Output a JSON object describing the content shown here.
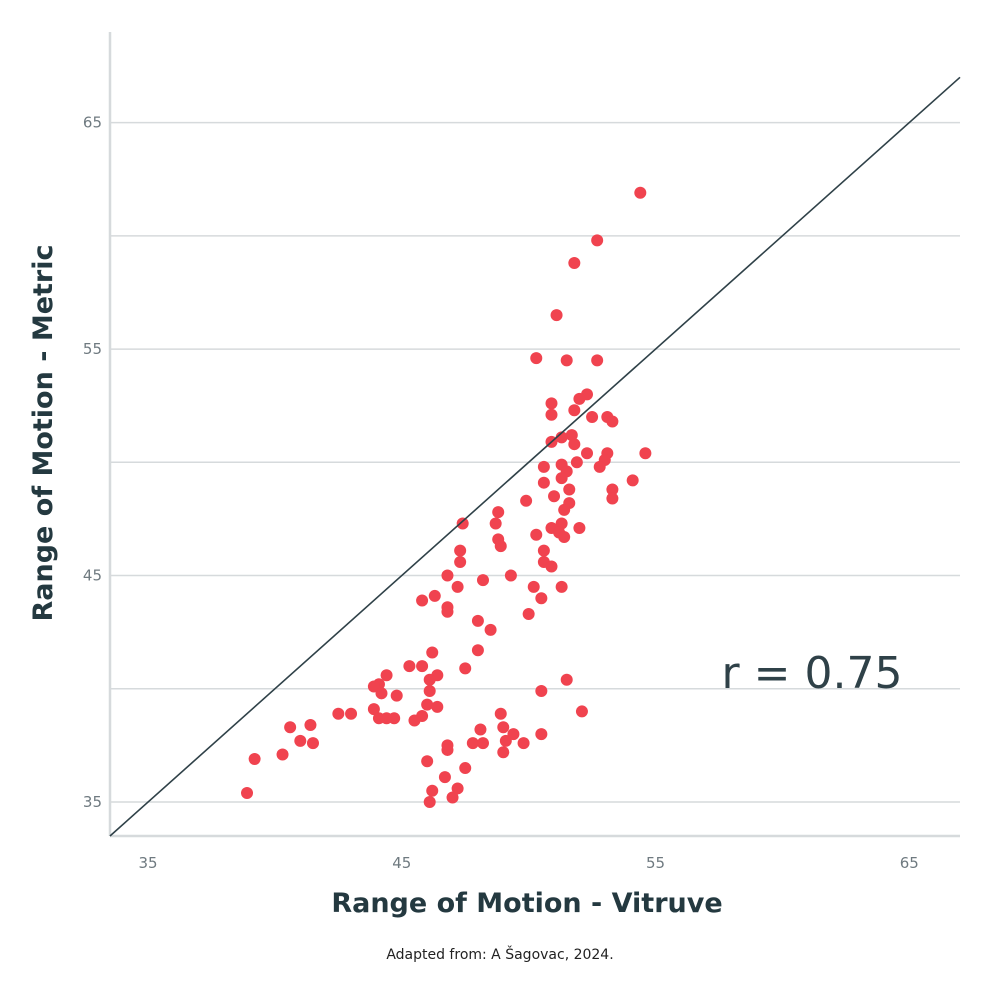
{
  "chart_data": {
    "type": "scatter",
    "title": "",
    "xlabel": "Range of Motion - Vitruve",
    "ylabel": "Range of Motion - Metric",
    "xlim": [
      33.5,
      67
    ],
    "ylim": [
      33.5,
      69
    ],
    "xticks": [
      35,
      45,
      55,
      65
    ],
    "yticks": [
      35,
      45,
      55,
      65
    ],
    "grid": true,
    "point_color": "#f0434f",
    "line_color": "#2f4148",
    "reference_line": {
      "type": "identity",
      "label": ""
    },
    "annotation": "r = 0.75",
    "points": [
      [
        54.4,
        61.9
      ],
      [
        52.7,
        59.8
      ],
      [
        51.8,
        58.8
      ],
      [
        51.1,
        56.5
      ],
      [
        50.3,
        54.6
      ],
      [
        51.5,
        54.5
      ],
      [
        52.7,
        54.5
      ],
      [
        52.3,
        53.0
      ],
      [
        52.0,
        52.8
      ],
      [
        50.9,
        52.6
      ],
      [
        51.8,
        52.3
      ],
      [
        50.9,
        52.1
      ],
      [
        52.5,
        52.0
      ],
      [
        53.1,
        52.0
      ],
      [
        53.3,
        51.8
      ],
      [
        51.7,
        51.2
      ],
      [
        51.3,
        51.1
      ],
      [
        50.9,
        50.9
      ],
      [
        51.8,
        50.8
      ],
      [
        52.3,
        50.4
      ],
      [
        53.1,
        50.4
      ],
      [
        54.6,
        50.4
      ],
      [
        53.0,
        50.1
      ],
      [
        51.9,
        50.0
      ],
      [
        51.3,
        49.9
      ],
      [
        50.6,
        49.8
      ],
      [
        52.8,
        49.8
      ],
      [
        51.5,
        49.6
      ],
      [
        51.3,
        49.3
      ],
      [
        50.6,
        49.1
      ],
      [
        54.1,
        49.2
      ],
      [
        51.6,
        48.8
      ],
      [
        53.3,
        48.8
      ],
      [
        51.0,
        48.5
      ],
      [
        53.3,
        48.4
      ],
      [
        49.9,
        48.3
      ],
      [
        51.6,
        48.2
      ],
      [
        51.4,
        47.9
      ],
      [
        48.8,
        47.8
      ],
      [
        47.4,
        47.3
      ],
      [
        48.7,
        47.3
      ],
      [
        51.3,
        47.3
      ],
      [
        50.9,
        47.1
      ],
      [
        52.0,
        47.1
      ],
      [
        51.2,
        46.9
      ],
      [
        50.3,
        46.8
      ],
      [
        51.4,
        46.7
      ],
      [
        48.8,
        46.6
      ],
      [
        48.9,
        46.3
      ],
      [
        47.3,
        46.1
      ],
      [
        50.6,
        46.1
      ],
      [
        47.3,
        45.6
      ],
      [
        50.6,
        45.6
      ],
      [
        50.9,
        45.4
      ],
      [
        46.8,
        45.0
      ],
      [
        49.3,
        45.0
      ],
      [
        48.2,
        44.8
      ],
      [
        47.2,
        44.5
      ],
      [
        50.2,
        44.5
      ],
      [
        51.3,
        44.5
      ],
      [
        46.3,
        44.1
      ],
      [
        50.5,
        44.0
      ],
      [
        45.8,
        43.9
      ],
      [
        46.8,
        43.6
      ],
      [
        46.8,
        43.4
      ],
      [
        50.0,
        43.3
      ],
      [
        48.0,
        43.0
      ],
      [
        48.5,
        42.6
      ],
      [
        48.0,
        41.7
      ],
      [
        46.2,
        41.6
      ],
      [
        45.3,
        41.0
      ],
      [
        45.8,
        41.0
      ],
      [
        47.5,
        40.9
      ],
      [
        46.4,
        40.6
      ],
      [
        44.4,
        40.6
      ],
      [
        46.1,
        40.4
      ],
      [
        51.5,
        40.4
      ],
      [
        44.1,
        40.2
      ],
      [
        43.9,
        40.1
      ],
      [
        46.1,
        39.9
      ],
      [
        50.5,
        39.9
      ],
      [
        44.2,
        39.8
      ],
      [
        44.8,
        39.7
      ],
      [
        46.0,
        39.3
      ],
      [
        46.4,
        39.2
      ],
      [
        43.9,
        39.1
      ],
      [
        52.1,
        39.0
      ],
      [
        42.5,
        38.9
      ],
      [
        43.0,
        38.9
      ],
      [
        48.9,
        38.9
      ],
      [
        45.8,
        38.8
      ],
      [
        44.1,
        38.7
      ],
      [
        44.4,
        38.7
      ],
      [
        44.7,
        38.7
      ],
      [
        45.5,
        38.6
      ],
      [
        41.4,
        38.4
      ],
      [
        40.6,
        38.3
      ],
      [
        48.1,
        38.2
      ],
      [
        49.0,
        38.3
      ],
      [
        50.5,
        38.0
      ],
      [
        49.4,
        38.0
      ],
      [
        41.0,
        37.7
      ],
      [
        41.5,
        37.6
      ],
      [
        47.8,
        37.6
      ],
      [
        48.2,
        37.6
      ],
      [
        49.1,
        37.7
      ],
      [
        49.8,
        37.6
      ],
      [
        46.8,
        37.5
      ],
      [
        46.8,
        37.3
      ],
      [
        49.0,
        37.2
      ],
      [
        40.3,
        37.1
      ],
      [
        39.2,
        36.9
      ],
      [
        46.0,
        36.8
      ],
      [
        47.5,
        36.5
      ],
      [
        46.7,
        36.1
      ],
      [
        47.2,
        35.6
      ],
      [
        46.2,
        35.5
      ],
      [
        38.9,
        35.4
      ],
      [
        47.0,
        35.2
      ],
      [
        46.1,
        35.0
      ]
    ]
  },
  "source_note": "Adapted from: A Šagovac, 2024."
}
